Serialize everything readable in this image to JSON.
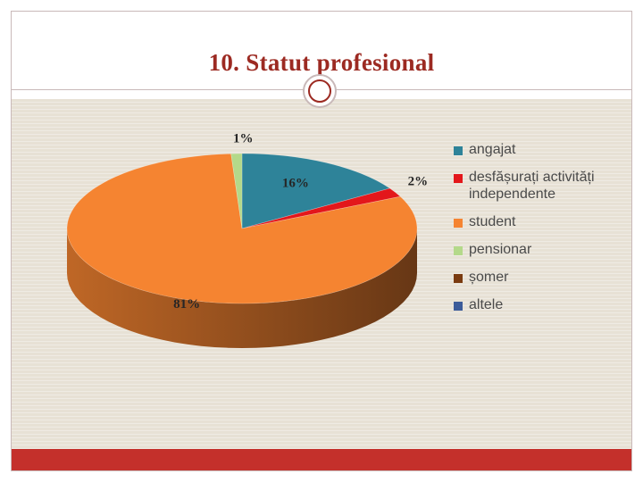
{
  "slide": {
    "title": "10. Statut profesional"
  },
  "chart_data": {
    "type": "pie",
    "title": "",
    "categories": [
      "angajat",
      "desfășurați activități independente",
      "student",
      "pensionar",
      "șomer",
      "altele"
    ],
    "values": [
      16,
      2,
      81,
      1,
      0,
      0
    ],
    "data_labels": [
      "16%",
      "2%",
      "81%",
      "1%",
      "",
      ""
    ],
    "colors": [
      "#2e8399",
      "#e3171b",
      "#f58431",
      "#b4d98a",
      "#7a3b10",
      "#3c5c9a"
    ],
    "legend_position": "right",
    "style": "3d"
  }
}
